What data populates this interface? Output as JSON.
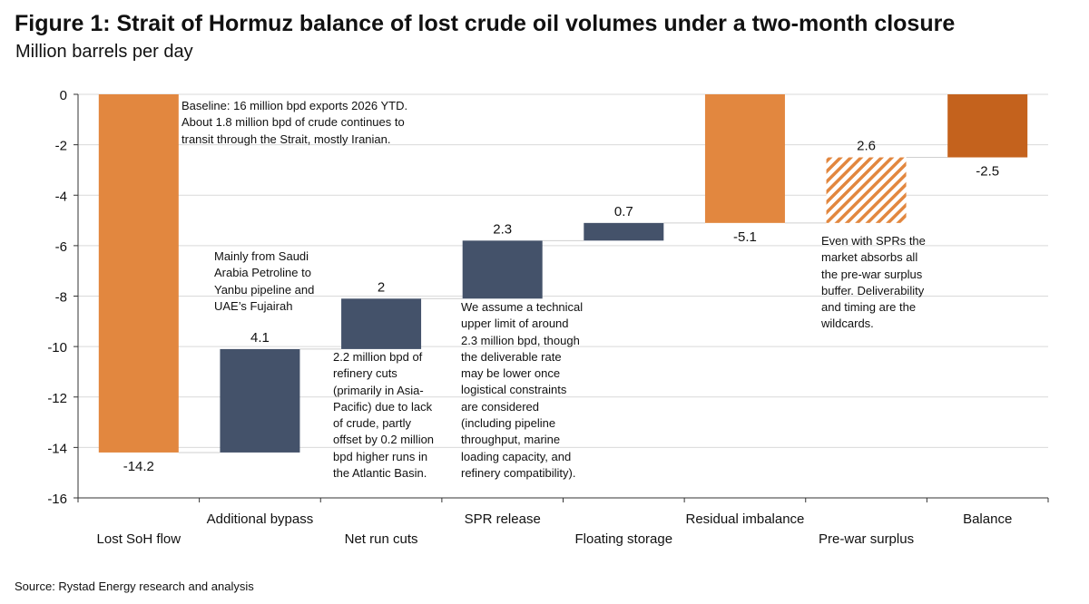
{
  "title": "Figure 1: Strait of Hormuz balance of lost crude oil volumes under a two-month closure",
  "subtitle": "Million barrels per day",
  "source": "Source: Rystad Energy research and analysis",
  "colors": {
    "orange": "#E2873F",
    "navy": "#44526A",
    "dark_orange": "#C4621D",
    "grid": "#D9D9D9"
  },
  "chart_data": {
    "type": "bar",
    "subtype": "waterfall",
    "title": "Figure 1: Strait of Hormuz balance of lost crude oil volumes under a two-month closure",
    "ylabel": "Million barrels per day",
    "ylim": [
      -16,
      0
    ],
    "yticks": [
      0,
      -2,
      -4,
      -6,
      -8,
      -10,
      -12,
      -14,
      -16
    ],
    "grid": true,
    "categories": [
      "Lost SoH flow",
      "Additional bypass",
      "Net run cuts",
      "SPR release",
      "Floating storage",
      "Residual  imbalance",
      "Pre-war surplus",
      "Balance"
    ],
    "bars": [
      {
        "category": "Lost SoH flow",
        "from": 0,
        "to": -14.2,
        "label": "-14.2",
        "style": "orange"
      },
      {
        "category": "Additional bypass",
        "from": -14.2,
        "to": -10.1,
        "label": "4.1",
        "style": "navy"
      },
      {
        "category": "Net run cuts",
        "from": -10.1,
        "to": -8.1,
        "label": "2",
        "style": "navy"
      },
      {
        "category": "SPR release",
        "from": -8.1,
        "to": -5.8,
        "label": "2.3",
        "style": "navy"
      },
      {
        "category": "Floating storage",
        "from": -5.8,
        "to": -5.1,
        "label": "0.7",
        "style": "navy"
      },
      {
        "category": "Residual  imbalance",
        "from": 0,
        "to": -5.1,
        "label": "-5.1",
        "style": "orange"
      },
      {
        "category": "Pre-war surplus",
        "from": -5.1,
        "to": -2.5,
        "label": "2.6",
        "style": "hatched"
      },
      {
        "category": "Balance",
        "from": 0,
        "to": -2.5,
        "label": "-2.5",
        "style": "dark_orange"
      }
    ],
    "annotations": [
      "Baseline: 16 million bpd exports 2026 YTD.\nAbout 1.8 million bpd of crude continues to\ntransit through the Strait, mostly Iranian.",
      "Mainly from Saudi\nArabia Petroline to\nYanbu pipeline and\nUAE’s Fujairah",
      "2.2 million bpd of\nrefinery cuts\n(primarily in Asia-\nPacific) due to lack\nof crude, partly\noffset by 0.2 million\nbpd higher runs in\nthe Atlantic Basin.",
      "We assume a technical\nupper limit of around\n2.3 million bpd, though\nthe deliverable rate\nmay be lower once\nlogistical constraints\nare considered\n(including pipeline\nthroughput, marine\nloading capacity, and\nrefinery compatibility).",
      "Even with SPRs the\nmarket absorbs all\nthe pre-war surplus\nbuffer. Deliverability\nand timing are the\nwildcards."
    ]
  }
}
